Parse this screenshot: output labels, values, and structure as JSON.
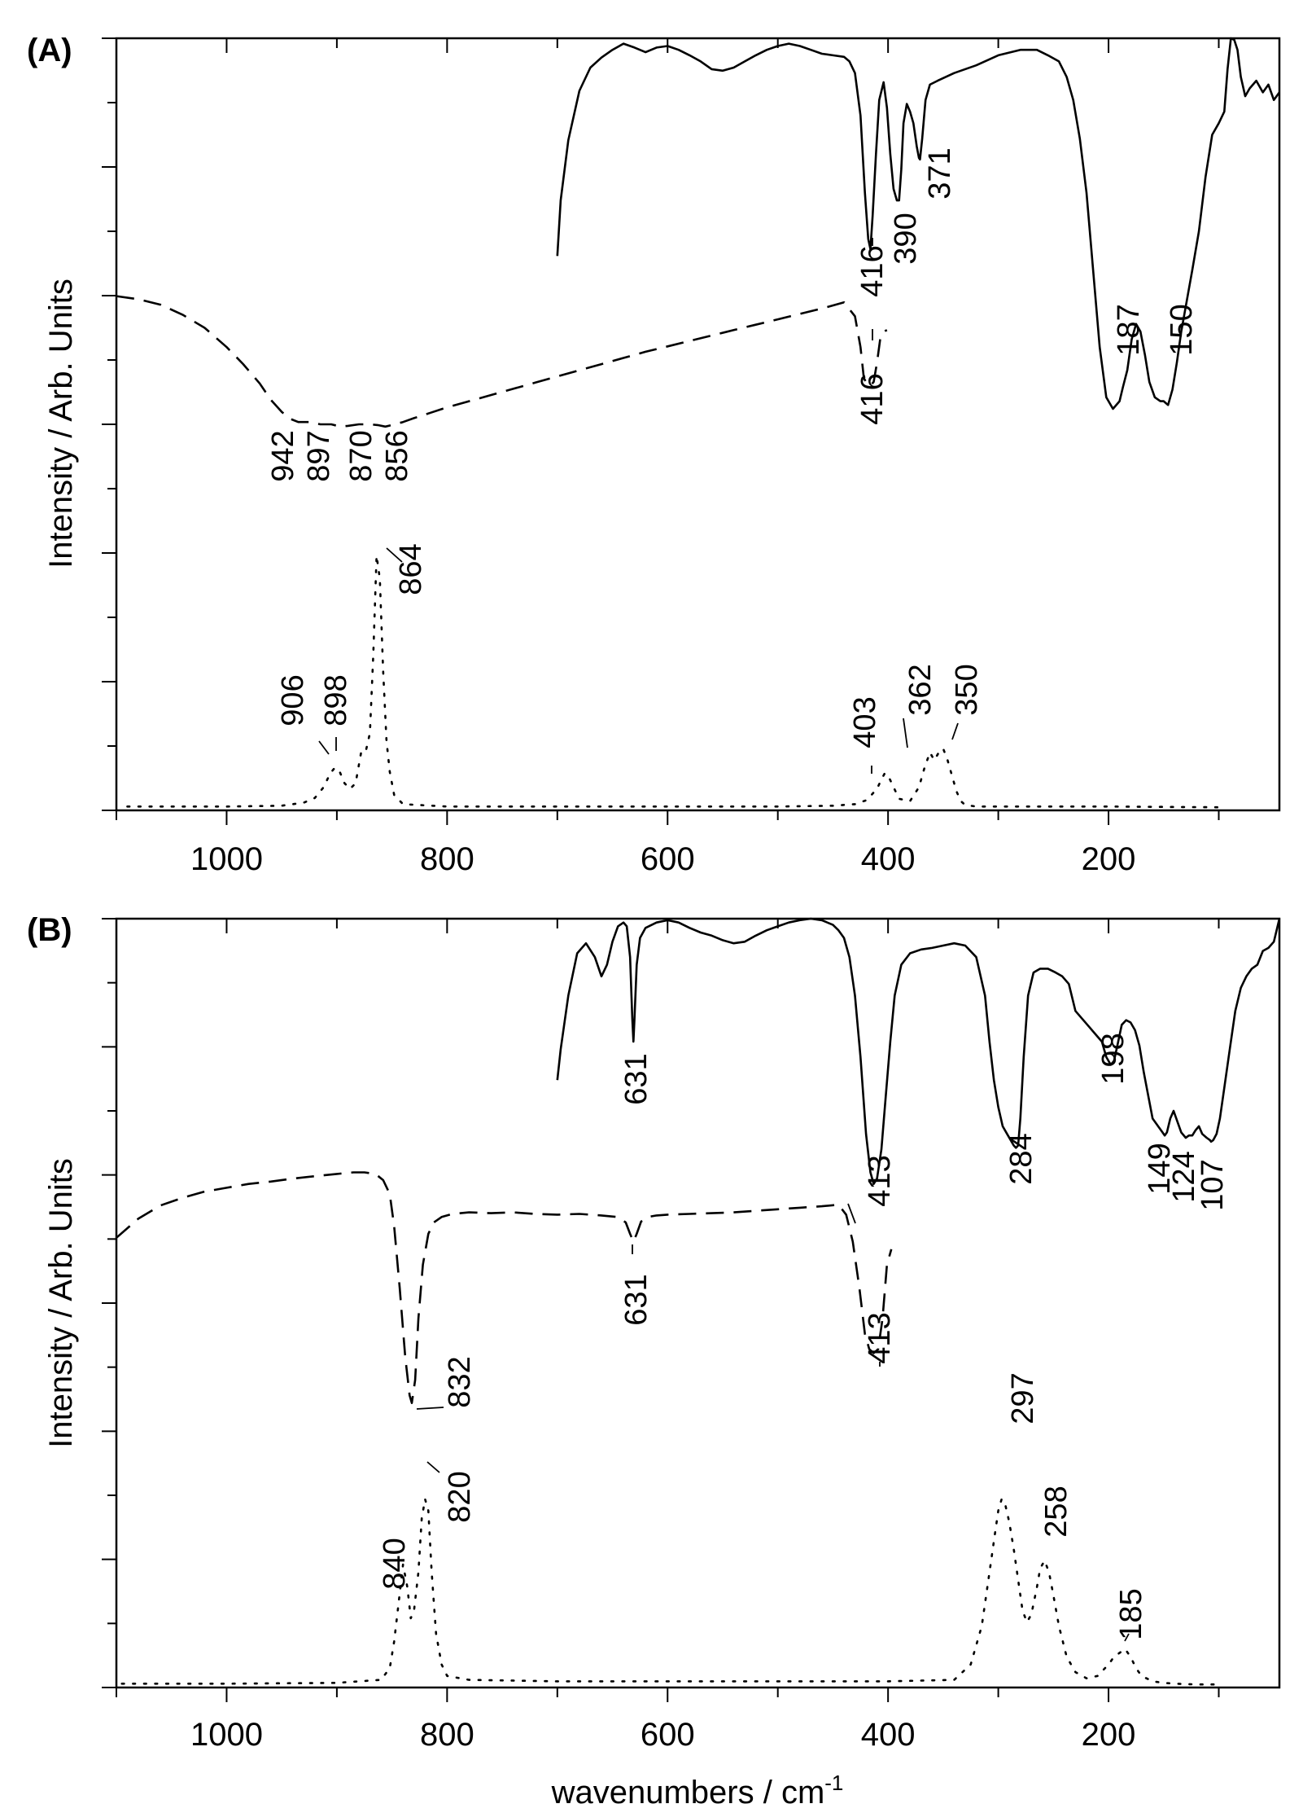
{
  "chart_data": [
    {
      "type": "line",
      "panel": "(A)",
      "ylabel": "Intensity / Arb. Units",
      "xlabel": "",
      "xlim": [
        1100,
        45
      ],
      "x_ticks": [
        1000,
        800,
        600,
        400,
        200
      ],
      "x_tick_labels": [
        "1000",
        "800",
        "600",
        "400",
        "200"
      ],
      "ylim": [
        0,
        1
      ],
      "series": [
        {
          "style": "solid",
          "x": [
            700,
            697,
            690,
            680,
            670,
            660,
            650,
            640,
            630,
            620,
            610,
            600,
            590,
            580,
            570,
            560,
            550,
            540,
            530,
            520,
            510,
            500,
            490,
            480,
            470,
            460,
            450,
            440,
            435,
            430,
            425,
            421,
            418,
            416,
            414,
            411,
            408,
            404,
            401,
            398,
            395,
            392,
            390,
            388,
            386,
            383,
            380,
            377,
            374,
            372,
            371,
            369,
            366,
            362,
            355,
            340,
            320,
            300,
            280,
            265,
            255,
            245,
            238,
            232,
            226,
            220,
            214,
            208,
            202,
            196,
            190,
            187,
            183,
            179,
            175,
            171,
            167,
            163,
            158,
            153,
            150,
            146,
            142,
            138,
            134,
            129,
            124,
            118,
            112,
            106,
            100,
            95,
            92,
            89,
            86,
            83,
            80,
            76,
            72,
            66,
            60,
            55,
            50,
            45
          ],
          "y": [
            0.718,
            0.79,
            0.868,
            0.932,
            0.962,
            0.975,
            0.985,
            0.993,
            0.988,
            0.982,
            0.988,
            0.99,
            0.985,
            0.978,
            0.97,
            0.96,
            0.958,
            0.962,
            0.97,
            0.978,
            0.985,
            0.99,
            0.993,
            0.99,
            0.985,
            0.98,
            0.978,
            0.976,
            0.97,
            0.955,
            0.9,
            0.8,
            0.74,
            0.727,
            0.77,
            0.85,
            0.92,
            0.943,
            0.91,
            0.85,
            0.805,
            0.79,
            0.79,
            0.83,
            0.89,
            0.915,
            0.905,
            0.89,
            0.86,
            0.845,
            0.843,
            0.87,
            0.92,
            0.94,
            0.945,
            0.955,
            0.965,
            0.978,
            0.985,
            0.985,
            0.978,
            0.97,
            0.95,
            0.92,
            0.87,
            0.8,
            0.7,
            0.6,
            0.535,
            0.52,
            0.53,
            0.548,
            0.57,
            0.61,
            0.63,
            0.62,
            0.59,
            0.555,
            0.535,
            0.53,
            0.53,
            0.525,
            0.545,
            0.58,
            0.62,
            0.66,
            0.7,
            0.75,
            0.82,
            0.875,
            0.89,
            0.905,
            0.96,
            1.0,
            0.998,
            0.985,
            0.95,
            0.925,
            0.935,
            0.945,
            0.93,
            0.94,
            0.92,
            0.93
          ]
        },
        {
          "style": "dashed",
          "x": [
            1100,
            1080,
            1060,
            1040,
            1020,
            1000,
            985,
            970,
            960,
            950,
            942,
            935,
            925,
            915,
            905,
            897,
            890,
            880,
            870,
            863,
            856,
            850,
            840,
            830,
            815,
            800,
            780,
            760,
            740,
            720,
            700,
            680,
            660,
            640,
            620,
            600,
            580,
            560,
            540,
            520,
            500,
            480,
            460,
            440,
            430,
            425,
            422,
            419,
            416,
            413,
            410,
            407,
            404,
            401
          ],
          "y": [
            0.666,
            0.662,
            0.655,
            0.642,
            0.625,
            0.6,
            0.578,
            0.553,
            0.532,
            0.516,
            0.507,
            0.503,
            0.503,
            0.5,
            0.5,
            0.497,
            0.498,
            0.5,
            0.5,
            0.499,
            0.497,
            0.499,
            0.503,
            0.508,
            0.515,
            0.522,
            0.53,
            0.538,
            0.546,
            0.554,
            0.562,
            0.57,
            0.578,
            0.586,
            0.594,
            0.601,
            0.608,
            0.615,
            0.622,
            0.629,
            0.636,
            0.643,
            0.65,
            0.658,
            0.64,
            0.6,
            0.56,
            0.552,
            0.55,
            0.555,
            0.58,
            0.612,
            0.62,
            0.622
          ]
        },
        {
          "style": "dotted",
          "x": [
            1090,
            1000,
            950,
            930,
            920,
            912,
            906,
            902,
            898,
            893,
            888,
            883,
            878,
            874,
            870,
            867,
            864,
            861,
            858,
            855,
            852,
            848,
            840,
            800,
            700,
            600,
            500,
            450,
            430,
            420,
            415,
            410,
            406,
            403,
            400,
            396,
            390,
            380,
            372,
            367,
            362,
            358,
            354,
            350,
            346,
            342,
            338,
            334,
            330,
            320,
            300,
            200,
            100
          ],
          "y": [
            0.005,
            0.005,
            0.006,
            0.01,
            0.016,
            0.03,
            0.048,
            0.055,
            0.052,
            0.035,
            0.028,
            0.035,
            0.075,
            0.075,
            0.1,
            0.2,
            0.33,
            0.3,
            0.18,
            0.09,
            0.05,
            0.02,
            0.008,
            0.005,
            0.005,
            0.005,
            0.005,
            0.006,
            0.008,
            0.013,
            0.02,
            0.028,
            0.04,
            0.048,
            0.045,
            0.033,
            0.015,
            0.012,
            0.03,
            0.055,
            0.075,
            0.065,
            0.075,
            0.08,
            0.065,
            0.045,
            0.025,
            0.012,
            0.007,
            0.005,
            0.005,
            0.005,
            0.004
          ]
        }
      ],
      "peak_labels": [
        "416",
        "390",
        "371",
        "187",
        "150",
        "942",
        "897",
        "870",
        "856",
        "416",
        "864",
        "906",
        "898",
        "403",
        "362",
        "350"
      ]
    },
    {
      "type": "line",
      "panel": "(B)",
      "ylabel": "Intensity / Arb. Units",
      "xlabel": "wavenumbers / cm",
      "xlabel_sup": "-1",
      "xlim": [
        1100,
        45
      ],
      "x_ticks": [
        1000,
        800,
        600,
        400,
        200
      ],
      "x_tick_labels": [
        "1000",
        "800",
        "600",
        "400",
        "200"
      ],
      "ylim": [
        0,
        1
      ],
      "series": [
        {
          "style": "solid",
          "x": [
            700,
            697,
            690,
            682,
            674,
            666,
            660,
            655,
            650,
            645,
            640,
            637,
            634,
            632,
            631,
            630,
            628,
            625,
            620,
            610,
            600,
            590,
            580,
            570,
            560,
            550,
            540,
            530,
            520,
            510,
            500,
            490,
            480,
            470,
            460,
            450,
            445,
            440,
            435,
            430,
            425,
            420,
            416,
            413,
            410,
            406,
            402,
            398,
            394,
            388,
            380,
            370,
            360,
            350,
            340,
            330,
            320,
            312,
            308,
            304,
            300,
            296,
            292,
            288,
            286,
            284,
            282,
            280,
            277,
            273,
            268,
            262,
            255,
            248,
            242,
            236,
            230,
            224,
            218,
            212,
            206,
            202,
            198,
            195,
            192,
            188,
            184,
            180,
            176,
            172,
            168,
            164,
            160,
            155,
            151,
            149,
            147,
            144,
            141,
            138,
            134,
            130,
            127,
            124,
            121,
            118,
            115,
            111,
            108,
            107,
            105,
            102,
            99,
            95,
            90,
            85,
            80,
            75,
            70,
            65,
            60,
            55,
            50,
            45
          ],
          "y": [
            0.79,
            0.83,
            0.9,
            0.955,
            0.968,
            0.95,
            0.925,
            0.94,
            0.97,
            0.99,
            0.995,
            0.99,
            0.95,
            0.87,
            0.84,
            0.87,
            0.94,
            0.975,
            0.988,
            0.995,
            0.998,
            0.995,
            0.988,
            0.982,
            0.978,
            0.972,
            0.968,
            0.97,
            0.978,
            0.985,
            0.99,
            0.995,
            0.998,
            1.0,
            0.998,
            0.992,
            0.985,
            0.975,
            0.95,
            0.9,
            0.82,
            0.72,
            0.67,
            0.655,
            0.662,
            0.7,
            0.77,
            0.84,
            0.9,
            0.94,
            0.955,
            0.96,
            0.962,
            0.965,
            0.968,
            0.965,
            0.95,
            0.9,
            0.84,
            0.79,
            0.755,
            0.73,
            0.72,
            0.71,
            0.705,
            0.702,
            0.705,
            0.74,
            0.82,
            0.9,
            0.93,
            0.935,
            0.935,
            0.93,
            0.925,
            0.915,
            0.88,
            0.87,
            0.86,
            0.85,
            0.84,
            0.82,
            0.81,
            0.815,
            0.835,
            0.862,
            0.868,
            0.865,
            0.855,
            0.835,
            0.8,
            0.77,
            0.74,
            0.73,
            0.722,
            0.718,
            0.722,
            0.74,
            0.75,
            0.738,
            0.722,
            0.715,
            0.718,
            0.718,
            0.725,
            0.73,
            0.72,
            0.715,
            0.712,
            0.71,
            0.712,
            0.72,
            0.74,
            0.78,
            0.83,
            0.88,
            0.91,
            0.925,
            0.935,
            0.94,
            0.958,
            0.962,
            0.97,
            1.0
          ]
        },
        {
          "style": "dashed",
          "x": [
            1100,
            1080,
            1060,
            1040,
            1020,
            1000,
            980,
            960,
            940,
            920,
            900,
            885,
            875,
            865,
            858,
            852,
            848,
            843,
            838,
            834,
            832,
            829,
            826,
            822,
            817,
            812,
            805,
            795,
            780,
            760,
            740,
            720,
            700,
            680,
            660,
            645,
            638,
            634,
            631,
            628,
            624,
            618,
            610,
            600,
            580,
            560,
            540,
            520,
            500,
            480,
            460,
            445,
            438,
            432,
            426,
            421,
            417,
            413,
            409,
            405,
            401,
            397
          ],
          "y": [
            0.585,
            0.61,
            0.627,
            0.637,
            0.645,
            0.65,
            0.655,
            0.658,
            0.662,
            0.665,
            0.668,
            0.67,
            0.67,
            0.668,
            0.66,
            0.642,
            0.6,
            0.52,
            0.43,
            0.38,
            0.37,
            0.4,
            0.48,
            0.55,
            0.59,
            0.605,
            0.612,
            0.616,
            0.618,
            0.617,
            0.618,
            0.616,
            0.615,
            0.616,
            0.614,
            0.612,
            0.605,
            0.59,
            0.58,
            0.59,
            0.606,
            0.612,
            0.614,
            0.615,
            0.616,
            0.617,
            0.618,
            0.62,
            0.622,
            0.624,
            0.626,
            0.628,
            0.615,
            0.58,
            0.52,
            0.46,
            0.44,
            0.435,
            0.44,
            0.48,
            0.55,
            0.57
          ]
        },
        {
          "style": "dotted",
          "x": [
            1095,
            1000,
            900,
            860,
            852,
            848,
            844,
            840,
            836,
            833,
            830,
            826,
            823,
            820,
            817,
            814,
            810,
            805,
            800,
            780,
            700,
            600,
            500,
            400,
            340,
            325,
            315,
            308,
            303,
            300,
            297,
            294,
            290,
            286,
            282,
            278,
            274,
            270,
            265,
            262,
            258,
            254,
            250,
            245,
            238,
            230,
            220,
            210,
            200,
            195,
            190,
            185,
            180,
            175,
            170,
            160,
            150,
            140,
            120,
            100
          ],
          "y": [
            0.005,
            0.005,
            0.006,
            0.01,
            0.025,
            0.06,
            0.11,
            0.16,
            0.13,
            0.09,
            0.1,
            0.15,
            0.22,
            0.245,
            0.23,
            0.15,
            0.07,
            0.03,
            0.015,
            0.01,
            0.008,
            0.008,
            0.008,
            0.008,
            0.01,
            0.03,
            0.08,
            0.15,
            0.2,
            0.23,
            0.245,
            0.24,
            0.215,
            0.18,
            0.14,
            0.1,
            0.085,
            0.095,
            0.13,
            0.155,
            0.165,
            0.15,
            0.12,
            0.08,
            0.04,
            0.02,
            0.012,
            0.015,
            0.03,
            0.04,
            0.045,
            0.05,
            0.04,
            0.025,
            0.015,
            0.008,
            0.006,
            0.005,
            0.004,
            0.004
          ]
        }
      ],
      "peak_labels": [
        "631",
        "413",
        "284",
        "198",
        "149",
        "124",
        "107",
        "631",
        "413",
        "832",
        "840",
        "820",
        "297",
        "258",
        "185"
      ]
    }
  ]
}
